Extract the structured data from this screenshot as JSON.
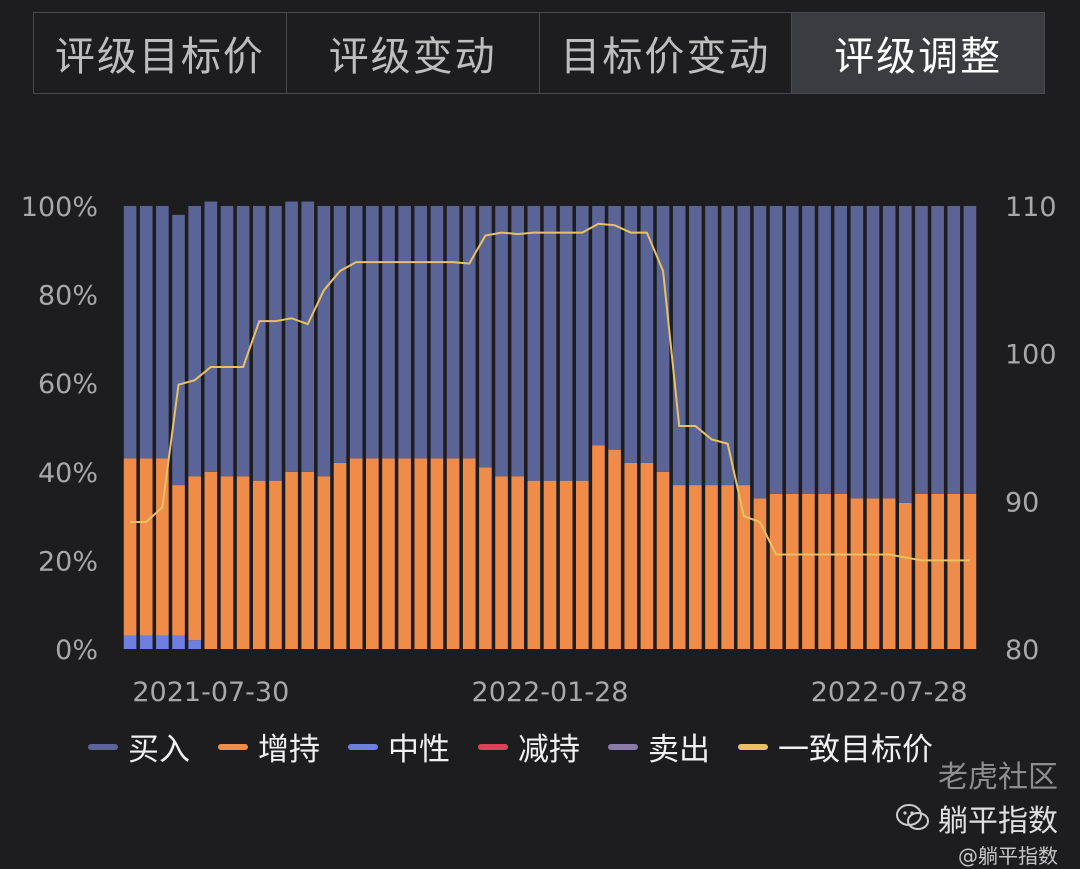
{
  "tabs": [
    {
      "label": "评级目标价",
      "active": false
    },
    {
      "label": "评级变动",
      "active": false
    },
    {
      "label": "目标价变动",
      "active": false
    },
    {
      "label": "评级调整",
      "active": true
    }
  ],
  "chart_data": {
    "type": "bar",
    "stacked": true,
    "x_tick_labels": [
      "2021-07-30",
      "2022-01-28",
      "2022-07-28"
    ],
    "y_left_ticks": [
      "0%",
      "20%",
      "40%",
      "60%",
      "80%",
      "100%"
    ],
    "y_right_ticks": [
      "80",
      "90",
      "100",
      "110"
    ],
    "ylim_left": [
      0,
      100
    ],
    "ylim_right": [
      80,
      110
    ],
    "series": [
      {
        "name": "买入",
        "color": "#5b6497",
        "values": [
          57,
          57,
          57,
          61,
          61,
          61,
          61,
          61,
          62,
          62,
          61,
          61,
          61,
          58,
          57,
          57,
          57,
          57,
          57,
          57,
          57,
          57,
          59,
          61,
          61,
          62,
          62,
          62,
          62,
          54,
          55,
          58,
          58,
          60,
          63,
          63,
          63,
          63,
          63,
          66,
          65,
          65,
          65,
          65,
          65,
          66,
          66,
          66,
          67,
          65,
          65,
          65,
          65
        ]
      },
      {
        "name": "增持",
        "color": "#f08c4a",
        "values": [
          40,
          40,
          40,
          34,
          37,
          40,
          39,
          39,
          38,
          38,
          40,
          40,
          39,
          42,
          43,
          43,
          43,
          43,
          43,
          43,
          43,
          43,
          41,
          39,
          39,
          38,
          38,
          38,
          38,
          46,
          45,
          42,
          42,
          40,
          37,
          37,
          37,
          37,
          37,
          34,
          35,
          35,
          35,
          35,
          35,
          34,
          34,
          34,
          33,
          35,
          35,
          35,
          35
        ]
      },
      {
        "name": "中性",
        "color": "#6e7fe0",
        "values": [
          3,
          3,
          3,
          3,
          2,
          0,
          0,
          0,
          0,
          0,
          0,
          0,
          0,
          0,
          0,
          0,
          0,
          0,
          0,
          0,
          0,
          0,
          0,
          0,
          0,
          0,
          0,
          0,
          0,
          0,
          0,
          0,
          0,
          0,
          0,
          0,
          0,
          0,
          0,
          0,
          0,
          0,
          0,
          0,
          0,
          0,
          0,
          0,
          0,
          0,
          0,
          0,
          0
        ]
      },
      {
        "name": "减持",
        "color": "#e0405a",
        "values": []
      },
      {
        "name": "卖出",
        "color": "#8a7aa8",
        "values": []
      }
    ],
    "line": {
      "name": "一致目标价",
      "color": "#e8c260",
      "values": [
        88.6,
        88.6,
        89.6,
        97.9,
        98.2,
        99.1,
        99.1,
        99.1,
        102.2,
        102.2,
        102.4,
        102.0,
        104.3,
        105.6,
        106.2,
        106.2,
        106.2,
        106.2,
        106.2,
        106.2,
        106.2,
        106.1,
        108.0,
        108.2,
        108.1,
        108.2,
        108.2,
        108.2,
        108.2,
        108.8,
        108.7,
        108.2,
        108.2,
        105.6,
        95.1,
        95.1,
        94.2,
        93.9,
        89.0,
        88.6,
        86.4,
        86.4,
        86.4,
        86.4,
        86.4,
        86.4,
        86.4,
        86.4,
        86.2,
        86.0,
        86.0,
        86.0,
        86.0
      ]
    },
    "legend_position": "bottom"
  },
  "legend": [
    {
      "label": "买入",
      "color": "#5b6497"
    },
    {
      "label": "增持",
      "color": "#f08c4a"
    },
    {
      "label": "中性",
      "color": "#6e7fe0"
    },
    {
      "label": "减持",
      "color": "#e0405a"
    },
    {
      "label": "卖出",
      "color": "#8a7aa8"
    },
    {
      "label": "一致目标价",
      "color": "#e8c260"
    }
  ],
  "watermark": {
    "line1": "老虎社区",
    "line2": "躺平指数",
    "line3": "@躺平指数"
  }
}
